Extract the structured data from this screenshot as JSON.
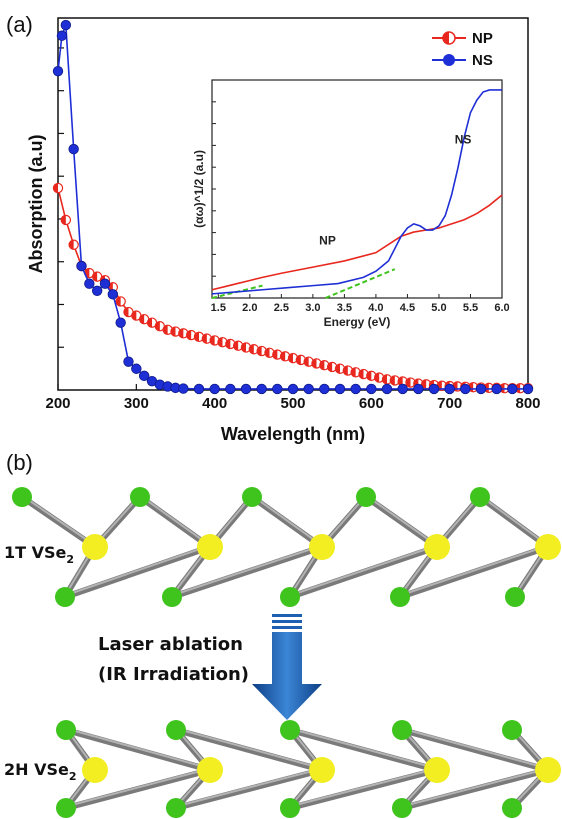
{
  "panel_a": {
    "label": "(a)",
    "legend": [
      {
        "name": "NP",
        "color": "#e8281e"
      },
      {
        "name": "NS",
        "color": "#1f2fd6"
      }
    ]
  },
  "panel_b": {
    "label": "(b)",
    "top_structure": {
      "name": "1T VSe",
      "subscript": "2"
    },
    "bottom_structure": {
      "name": "2H VSe",
      "subscript": "2"
    },
    "process_line1": "Laser ablation",
    "process_line2": "(IR Irradiation)",
    "atom_colors": {
      "vanadium": "#f2ee22",
      "selenium": "#3fc41e",
      "bond": "#7a7a7a"
    },
    "arrow_color": "#1d5fb0"
  },
  "chart_data": [
    {
      "type": "line",
      "xlabel": "Wavelength (nm)",
      "ylabel": "Absorption (a.u)",
      "xlim": [
        200,
        800
      ],
      "ylim": [
        0,
        1.05
      ],
      "xticks": [
        200,
        300,
        400,
        500,
        600,
        700,
        800
      ],
      "ytick_labels_shown": false,
      "series": [
        {
          "name": "NP",
          "color": "#e8281e",
          "marker": "half-filled circle",
          "x": [
            200,
            210,
            220,
            230,
            240,
            250,
            260,
            270,
            280,
            290,
            300,
            310,
            320,
            330,
            340,
            350,
            360,
            370,
            380,
            390,
            400,
            410,
            420,
            430,
            440,
            450,
            460,
            470,
            480,
            490,
            500,
            510,
            520,
            530,
            540,
            550,
            560,
            570,
            580,
            590,
            600,
            610,
            620,
            630,
            640,
            650,
            660,
            670,
            680,
            690,
            700,
            710,
            720,
            730,
            740,
            750,
            760,
            770,
            780,
            790,
            800
          ],
          "y": [
            0.57,
            0.48,
            0.41,
            0.35,
            0.33,
            0.32,
            0.31,
            0.29,
            0.25,
            0.22,
            0.21,
            0.2,
            0.19,
            0.18,
            0.17,
            0.165,
            0.16,
            0.155,
            0.15,
            0.145,
            0.14,
            0.135,
            0.13,
            0.125,
            0.12,
            0.115,
            0.11,
            0.105,
            0.1,
            0.095,
            0.09,
            0.085,
            0.08,
            0.075,
            0.07,
            0.065,
            0.06,
            0.055,
            0.05,
            0.045,
            0.04,
            0.035,
            0.03,
            0.027,
            0.024,
            0.021,
            0.018,
            0.016,
            0.014,
            0.012,
            0.011,
            0.01,
            0.009,
            0.008,
            0.007,
            0.006,
            0.006,
            0.005,
            0.005,
            0.005,
            0.005
          ]
        },
        {
          "name": "NS",
          "color": "#1f2fd6",
          "marker": "filled circle",
          "x": [
            200,
            205,
            210,
            220,
            230,
            240,
            250,
            260,
            270,
            280,
            290,
            300,
            310,
            320,
            330,
            340,
            350,
            360,
            380,
            400,
            420,
            440,
            460,
            480,
            500,
            520,
            540,
            560,
            580,
            600,
            620,
            640,
            660,
            680,
            700,
            720,
            740,
            760,
            780,
            800
          ],
          "y": [
            0.9,
            1.0,
            1.03,
            0.68,
            0.35,
            0.3,
            0.28,
            0.3,
            0.27,
            0.19,
            0.08,
            0.06,
            0.04,
            0.025,
            0.015,
            0.01,
            0.006,
            0.004,
            0.003,
            0.003,
            0.003,
            0.003,
            0.003,
            0.003,
            0.003,
            0.003,
            0.003,
            0.003,
            0.003,
            0.003,
            0.003,
            0.003,
            0.003,
            0.003,
            0.003,
            0.003,
            0.003,
            0.003,
            0.003,
            0.003
          ]
        }
      ]
    },
    {
      "type": "line",
      "xlabel": "Energy (eV)",
      "ylabel": "(αω)^1/2 (a.u)",
      "xlim": [
        1.4,
        6.0
      ],
      "xticks": [
        1.5,
        2.0,
        2.5,
        3.0,
        3.5,
        4.0,
        4.5,
        5.0,
        5.5,
        6.0
      ],
      "ylim": [
        0,
        1.0
      ],
      "annotations": [
        {
          "text": "NP",
          "x": 3.1,
          "y": 0.26
        },
        {
          "text": "NS",
          "x": 5.25,
          "y": 0.75
        }
      ],
      "series": [
        {
          "name": "NP",
          "color": "#e8281e",
          "x": [
            1.4,
            1.6,
            1.8,
            2.0,
            2.2,
            2.5,
            3.0,
            3.5,
            4.0,
            4.2,
            4.4,
            4.6,
            4.8,
            5.0,
            5.2,
            5.4,
            5.6,
            5.8,
            6.0
          ],
          "y": [
            0.04,
            0.055,
            0.07,
            0.085,
            0.1,
            0.12,
            0.15,
            0.18,
            0.22,
            0.26,
            0.3,
            0.32,
            0.33,
            0.34,
            0.36,
            0.38,
            0.41,
            0.45,
            0.5
          ]
        },
        {
          "name": "NS",
          "color": "#1f2fd6",
          "x": [
            1.4,
            1.8,
            2.2,
            2.6,
            3.0,
            3.4,
            3.8,
            4.0,
            4.2,
            4.3,
            4.4,
            4.5,
            4.6,
            4.7,
            4.8,
            4.9,
            5.0,
            5.1,
            5.2,
            5.3,
            5.4,
            5.5,
            5.6,
            5.7,
            5.8,
            6.0
          ],
          "y": [
            0.02,
            0.03,
            0.04,
            0.05,
            0.06,
            0.07,
            0.1,
            0.13,
            0.18,
            0.24,
            0.3,
            0.34,
            0.36,
            0.35,
            0.33,
            0.33,
            0.35,
            0.4,
            0.5,
            0.63,
            0.78,
            0.9,
            0.96,
            1.0,
            1.01,
            1.01
          ]
        }
      ],
      "fit_lines": [
        {
          "color": "#3fc41e",
          "style": "dashed",
          "x": [
            1.4,
            2.2
          ],
          "y": [
            0.0,
            0.06
          ]
        },
        {
          "color": "#3fc41e",
          "style": "dashed",
          "x": [
            3.2,
            4.3
          ],
          "y": [
            0.0,
            0.14
          ]
        }
      ]
    }
  ]
}
